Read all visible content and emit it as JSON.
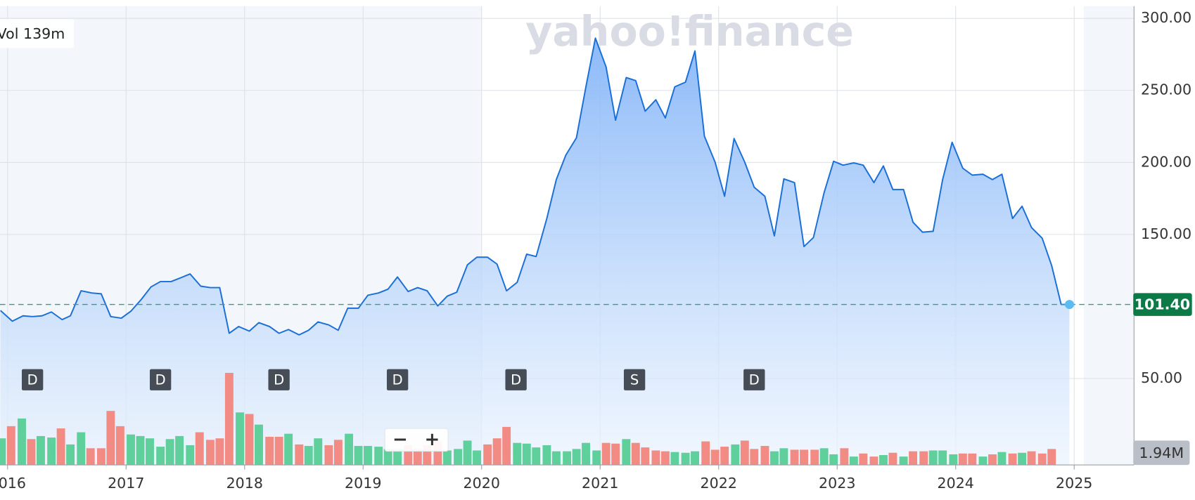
{
  "chart_data": [
    {
      "type": "area",
      "color": "#1a6ed8",
      "grid": true,
      "xlim": [
        2015.936,
        2025.505
      ],
      "xticks": [
        2016,
        2017,
        2018,
        2019,
        2020,
        2021,
        2022,
        2023,
        2024,
        2025
      ],
      "ylim": [
        -10,
        308.5
      ],
      "yticks": [
        {
          "value": 50,
          "label": "50.00"
        },
        {
          "value": 150,
          "label": "150.00"
        },
        {
          "value": 200,
          "label": "200.00"
        },
        {
          "value": 250,
          "label": "250.00"
        },
        {
          "value": 300,
          "label": "300.00"
        }
      ],
      "current": {
        "value": 101.4,
        "label": "101.40"
      },
      "x": [
        2015.94,
        2016.04,
        2016.13,
        2016.21,
        2016.29,
        2016.37,
        2016.46,
        2016.53,
        2016.62,
        2016.71,
        2016.79,
        2016.87,
        2016.96,
        2017.04,
        2017.13,
        2017.21,
        2017.29,
        2017.38,
        2017.46,
        2017.54,
        2017.63,
        2017.71,
        2017.79,
        2017.87,
        2017.95,
        2018.04,
        2018.12,
        2018.21,
        2018.29,
        2018.37,
        2018.46,
        2018.54,
        2018.62,
        2018.71,
        2018.79,
        2018.87,
        2018.96,
        2019.04,
        2019.13,
        2019.21,
        2019.29,
        2019.38,
        2019.46,
        2019.54,
        2019.63,
        2019.71,
        2019.79,
        2019.88,
        2019.96,
        2020.05,
        2020.13,
        2020.21,
        2020.3,
        2020.38,
        2020.46,
        2020.55,
        2020.63,
        2020.71,
        2020.8,
        2020.88,
        2020.96,
        2021.05,
        2021.13,
        2021.22,
        2021.3,
        2021.38,
        2021.47,
        2021.55,
        2021.63,
        2021.72,
        2021.8,
        2021.88,
        2021.97,
        2022.05,
        2022.13,
        2022.22,
        2022.3,
        2022.39,
        2022.47,
        2022.55,
        2022.64,
        2022.72,
        2022.8,
        2022.89,
        2022.97,
        2023.05,
        2023.14,
        2023.22,
        2023.31,
        2023.39,
        2023.47,
        2023.56,
        2023.64,
        2023.72,
        2023.81,
        2023.89,
        2023.97,
        2024.06,
        2024.14,
        2024.23,
        2024.31,
        2024.39,
        2024.48,
        2024.56,
        2024.64,
        2024.73,
        2024.81,
        2024.89,
        2024.96
      ],
      "values": [
        97.2,
        89.8,
        93.5,
        93.0,
        93.5,
        96.2,
        90.9,
        93.5,
        110.9,
        109.4,
        108.8,
        93.0,
        91.9,
        96.7,
        105.1,
        113.6,
        117.3,
        117.3,
        119.9,
        122.6,
        114.1,
        113.1,
        113.1,
        81.4,
        86.1,
        82.9,
        88.8,
        86.1,
        81.4,
        84.0,
        80.3,
        83.5,
        89.3,
        87.2,
        83.5,
        98.8,
        98.8,
        107.8,
        109.4,
        112.0,
        120.5,
        110.4,
        113.1,
        110.9,
        100.4,
        107.2,
        109.9,
        128.9,
        134.2,
        134.2,
        129.4,
        110.9,
        116.8,
        136.3,
        134.7,
        161.1,
        188.1,
        205.0,
        217.1,
        252.5,
        286.3,
        266.3,
        229.3,
        258.9,
        256.8,
        235.6,
        243.5,
        230.9,
        252.5,
        255.7,
        277.4,
        218.2,
        200.2,
        176.5,
        216.6,
        200.2,
        182.8,
        176.5,
        149.0,
        188.6,
        186.0,
        141.6,
        147.9,
        179.1,
        200.8,
        198.1,
        199.7,
        198.1,
        186.0,
        197.6,
        181.2,
        181.2,
        158.5,
        151.6,
        152.2,
        188.1,
        214.0,
        196.0,
        191.2,
        191.8,
        188.1,
        191.8,
        161.1,
        169.6,
        154.8,
        147.4,
        128.4,
        101.4,
        101.4
      ],
      "events": [
        {
          "x": 2016.21,
          "label": "D"
        },
        {
          "x": 2017.29,
          "label": "D"
        },
        {
          "x": 2018.29,
          "label": "D"
        },
        {
          "x": 2019.29,
          "label": "D"
        },
        {
          "x": 2020.29,
          "label": "D"
        },
        {
          "x": 2021.29,
          "label": "S"
        },
        {
          "x": 2022.3,
          "label": "D"
        }
      ]
    },
    {
      "type": "bar",
      "ylim": [
        0,
        55.7
      ],
      "up_color": "#5fd09c",
      "down_color": "#f38b85",
      "last": {
        "value": 1.94,
        "label": "1.94M"
      },
      "x": [
        2015.95,
        2016.03,
        2016.12,
        2016.2,
        2016.28,
        2016.37,
        2016.45,
        2016.53,
        2016.62,
        2016.7,
        2016.79,
        2016.87,
        2016.95,
        2017.04,
        2017.12,
        2017.2,
        2017.29,
        2017.37,
        2017.45,
        2017.54,
        2017.62,
        2017.71,
        2017.79,
        2017.87,
        2017.96,
        2018.04,
        2018.12,
        2018.21,
        2018.29,
        2018.37,
        2018.46,
        2018.54,
        2018.62,
        2018.71,
        2018.79,
        2018.88,
        2018.96,
        2019.04,
        2019.13,
        2019.21,
        2019.29,
        2019.38,
        2019.46,
        2019.54,
        2019.63,
        2019.71,
        2019.8,
        2019.88,
        2019.96,
        2020.05,
        2020.13,
        2020.21,
        2020.3,
        2020.38,
        2020.46,
        2020.55,
        2020.63,
        2020.72,
        2020.8,
        2020.88,
        2020.97,
        2021.05,
        2021.13,
        2021.22,
        2021.3,
        2021.38,
        2021.47,
        2021.55,
        2021.63,
        2021.72,
        2021.8,
        2021.89,
        2021.97,
        2022.05,
        2022.14,
        2022.22,
        2022.3,
        2022.39,
        2022.47,
        2022.55,
        2022.64,
        2022.72,
        2022.81,
        2022.89,
        2022.97,
        2023.06,
        2023.14,
        2023.22,
        2023.31,
        2023.39,
        2023.47,
        2023.56,
        2023.64,
        2023.73,
        2023.81,
        2023.89,
        2023.98,
        2024.06,
        2024.14,
        2024.23,
        2024.31,
        2024.39,
        2024.48,
        2024.56,
        2024.64,
        2024.73,
        2024.81
      ],
      "values": [
        3.23,
        4.71,
        5.64,
        3.14,
        3.51,
        3.33,
        4.44,
        2.49,
        3.97,
        2.03,
        2.03,
        6.56,
        4.71,
        3.7,
        3.51,
        3.23,
        2.22,
        3.14,
        3.51,
        2.4,
        3.97,
        3.05,
        3.23,
        11.18,
        6.38,
        6.19,
        4.9,
        3.42,
        3.42,
        3.79,
        2.49,
        2.31,
        3.23,
        2.4,
        3.05,
        3.79,
        2.31,
        2.31,
        2.22,
        1.94,
        1.94,
        2.4,
        1.94,
        2.4,
        2.86,
        1.76,
        1.94,
        2.96,
        1.76,
        2.49,
        3.23,
        4.62,
        2.68,
        2.59,
        2.13,
        2.4,
        1.66,
        1.66,
        1.94,
        2.68,
        1.76,
        2.68,
        2.59,
        3.14,
        2.68,
        2.13,
        1.76,
        1.66,
        1.57,
        1.48,
        1.66,
        2.86,
        1.85,
        2.22,
        2.49,
        2.96,
        1.94,
        2.31,
        1.66,
        2.03,
        1.85,
        1.85,
        1.85,
        2.03,
        1.29,
        2.03,
        1.02,
        1.39,
        1.02,
        1.2,
        1.48,
        1.02,
        1.66,
        1.66,
        1.76,
        1.76,
        1.29,
        1.39,
        1.39,
        1.02,
        1.29,
        1.57,
        1.39,
        1.48,
        1.66,
        1.39,
        1.94
      ],
      "up": [
        true,
        false,
        true,
        false,
        true,
        true,
        false,
        true,
        true,
        false,
        false,
        false,
        false,
        true,
        true,
        true,
        true,
        true,
        true,
        true,
        false,
        false,
        false,
        false,
        true,
        false,
        true,
        false,
        false,
        true,
        false,
        true,
        true,
        false,
        false,
        true,
        true,
        true,
        true,
        true,
        true,
        false,
        false,
        false,
        false,
        true,
        true,
        true,
        true,
        false,
        false,
        false,
        true,
        true,
        true,
        true,
        true,
        true,
        true,
        true,
        true,
        false,
        false,
        true,
        false,
        false,
        false,
        false,
        true,
        true,
        true,
        false,
        false,
        false,
        true,
        false,
        false,
        false,
        true,
        true,
        false,
        false,
        false,
        true,
        true,
        false,
        true,
        false,
        false,
        true,
        false,
        true,
        false,
        false,
        true,
        true,
        true,
        false,
        false,
        true,
        false,
        true,
        false,
        true,
        false,
        false,
        false
      ]
    }
  ],
  "watermark": "yahoo!finance",
  "volume_box": "Vol 139m",
  "zoom": [
    "−",
    "+"
  ]
}
